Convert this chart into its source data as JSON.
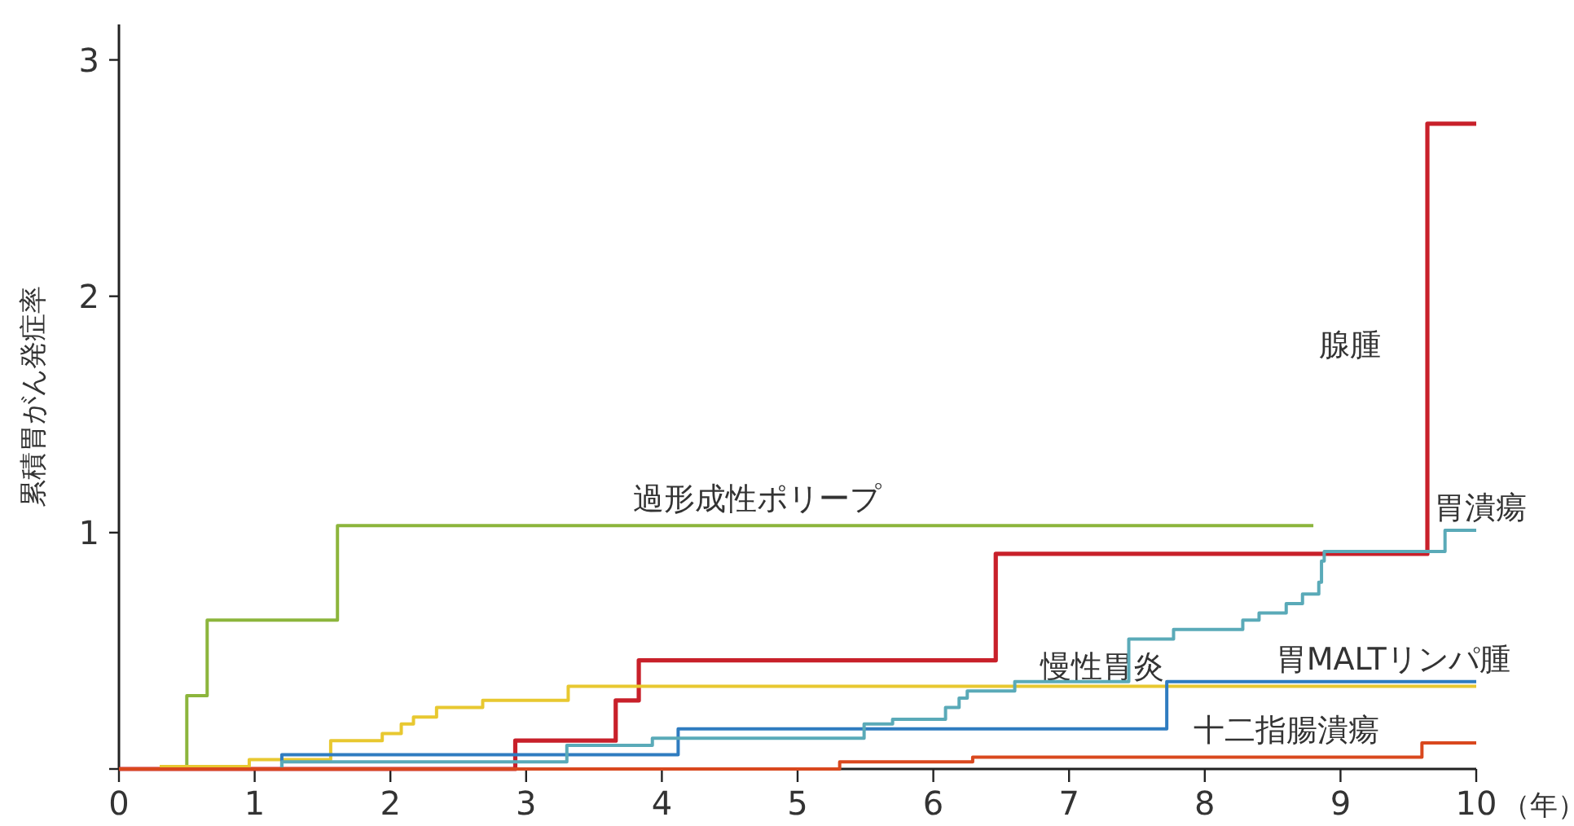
{
  "chart_data": {
    "type": "step",
    "ylabel": "累積胃がん発症率",
    "xlabel": "（年）",
    "xlim": [
      0,
      10
    ],
    "ylim": [
      0,
      3.15
    ],
    "xticks": [
      0,
      1,
      2,
      3,
      4,
      5,
      6,
      7,
      8,
      9,
      10
    ],
    "yticks": [
      {
        "value": 0,
        "label": null
      },
      1,
      2,
      3
    ],
    "series": [
      {
        "name": "過形成性ポリープ",
        "color": "#8cb53c",
        "x": [
          0.5,
          0.5,
          0.65,
          1.61,
          8.8
        ],
        "values": [
          0,
          0.31,
          0.63,
          1.03,
          1.03
        ]
      },
      {
        "name": "腺腫",
        "color": "#c8202a",
        "x": [
          0,
          2.92,
          3.66,
          3.83,
          6.46,
          9.64,
          10
        ],
        "values": [
          0,
          0.12,
          0.29,
          0.46,
          0.91,
          2.73,
          2.73
        ]
      },
      {
        "name": "慢性胃炎",
        "color": "#e8c830",
        "x": [
          0.3,
          0.96,
          1.56,
          1.94,
          2.08,
          2.17,
          2.34,
          2.68,
          3.31,
          10
        ],
        "values": [
          0.01,
          0.04,
          0.12,
          0.15,
          0.19,
          0.22,
          0.26,
          0.29,
          0.35,
          0.35
        ]
      },
      {
        "name": "胃MALTリンパ腫",
        "color": "#2f7cc0",
        "x": [
          0,
          1.2,
          4.12,
          7.72,
          10
        ],
        "values": [
          0,
          0.06,
          0.17,
          0.37,
          0.37
        ]
      },
      {
        "name": "胃潰瘍",
        "color": "#5aaab8",
        "x": [
          0,
          1.2,
          3.3,
          3.93,
          5.49,
          5.7,
          6.09,
          6.19,
          6.25,
          6.6,
          7.44,
          7.77,
          8.28,
          8.4,
          8.6,
          8.72,
          8.84,
          8.86,
          8.88,
          9.77,
          10
        ],
        "values": [
          0,
          0.03,
          0.1,
          0.13,
          0.19,
          0.21,
          0.26,
          0.3,
          0.33,
          0.37,
          0.55,
          0.59,
          0.63,
          0.66,
          0.7,
          0.74,
          0.79,
          0.88,
          0.92,
          1.01,
          1.01
        ]
      },
      {
        "name": "十二指腸潰瘍",
        "color": "#d9481e",
        "x": [
          0,
          5.31,
          6.29,
          9.6,
          10
        ],
        "values": [
          0,
          0.03,
          0.05,
          0.11,
          0.11
        ]
      }
    ]
  }
}
